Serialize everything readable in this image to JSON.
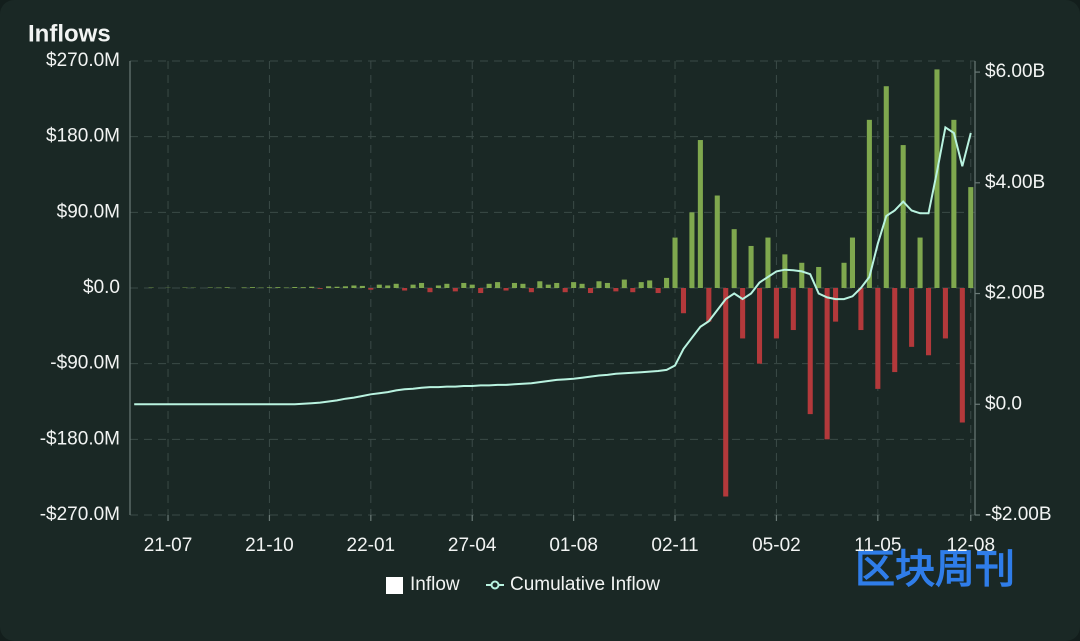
{
  "chart_data": {
    "type": "bar",
    "title": "Inflows",
    "watermark": "区块周刊",
    "categories": [
      null,
      null,
      null,
      null,
      "21-07",
      null,
      null,
      null,
      null,
      null,
      null,
      null,
      null,
      null,
      null,
      null,
      "21-10",
      null,
      null,
      null,
      null,
      null,
      null,
      null,
      null,
      null,
      null,
      null,
      "22-01",
      null,
      null,
      null,
      null,
      null,
      null,
      null,
      null,
      null,
      null,
      null,
      "27-04",
      null,
      null,
      null,
      null,
      null,
      null,
      null,
      null,
      null,
      null,
      null,
      "01-08",
      null,
      null,
      null,
      null,
      null,
      null,
      null,
      null,
      null,
      null,
      null,
      "02-11",
      null,
      null,
      null,
      null,
      null,
      null,
      null,
      null,
      null,
      null,
      null,
      "05-02",
      null,
      null,
      null,
      null,
      null,
      null,
      null,
      null,
      null,
      null,
      null,
      "11-05",
      null,
      null,
      null,
      null,
      null,
      null,
      null,
      null,
      null,
      null,
      "12-08"
    ],
    "series": [
      {
        "name": "Inflow",
        "color": "#ffffff",
        "positive_color": "#7fa84e",
        "negative_color": "#b3393b",
        "values": [
          0,
          0,
          0.5,
          0,
          0.3,
          0,
          0.5,
          0.4,
          0,
          0.6,
          0.5,
          0.8,
          0,
          0.7,
          1,
          0.5,
          0.8,
          1,
          0.6,
          1.2,
          1,
          1.5,
          -1,
          2,
          1.5,
          2,
          3,
          2.5,
          -2,
          4,
          3,
          5,
          -3,
          4,
          6,
          -5,
          3,
          5,
          -4,
          6,
          4,
          -6,
          5,
          7,
          -3,
          6,
          5,
          -5,
          8,
          4,
          6,
          -5,
          7,
          5,
          -6,
          8,
          6,
          -4,
          10,
          -5,
          7,
          9,
          -6,
          12,
          60,
          -30,
          90,
          176,
          -40,
          110,
          -248,
          70,
          -60,
          50,
          -90,
          60,
          -60,
          40,
          -50,
          30,
          -150,
          25,
          -180,
          -40,
          30,
          60,
          -50,
          200,
          -120,
          240,
          -100,
          170,
          -70,
          60,
          -80,
          260,
          -60,
          200,
          -160,
          120
        ]
      },
      {
        "name": "Cumulative Inflow",
        "color": "#b9f3e0",
        "axis": "y2",
        "values": [
          0,
          0,
          0,
          0,
          0,
          0,
          0,
          0,
          0,
          0,
          0,
          0,
          0,
          0,
          0,
          0,
          0,
          0,
          0,
          0,
          0.01,
          0.02,
          0.03,
          0.05,
          0.07,
          0.1,
          0.12,
          0.15,
          0.18,
          0.2,
          0.22,
          0.25,
          0.27,
          0.28,
          0.3,
          0.31,
          0.31,
          0.32,
          0.32,
          0.33,
          0.33,
          0.34,
          0.34,
          0.35,
          0.35,
          0.36,
          0.37,
          0.38,
          0.4,
          0.42,
          0.44,
          0.45,
          0.46,
          0.48,
          0.5,
          0.52,
          0.53,
          0.55,
          0.56,
          0.57,
          0.58,
          0.59,
          0.6,
          0.62,
          0.7,
          1.0,
          1.2,
          1.4,
          1.5,
          1.7,
          1.9,
          2.0,
          1.9,
          2.0,
          2.2,
          2.3,
          2.4,
          2.43,
          2.42,
          2.4,
          2.35,
          2.0,
          1.93,
          1.9,
          1.9,
          1.95,
          2.1,
          2.3,
          2.9,
          3.4,
          3.5,
          3.66,
          3.5,
          3.45,
          3.45,
          4.2,
          5.0,
          4.9,
          4.3,
          4.9
        ]
      }
    ],
    "ylim": [
      -270,
      270
    ],
    "yticks": [
      {
        "value": 270,
        "label": "$270.0M"
      },
      {
        "value": 180,
        "label": "$180.0M"
      },
      {
        "value": 90,
        "label": "$90.0M"
      },
      {
        "value": 0,
        "label": "$0.0"
      },
      {
        "value": -90,
        "label": "-$90.0M"
      },
      {
        "value": -180,
        "label": "-$180.0M"
      },
      {
        "value": -270,
        "label": "-$270.0M"
      }
    ],
    "y2lim": [
      -2,
      6.2
    ],
    "y2ticks": [
      {
        "value": 6,
        "label": "$6.00B"
      },
      {
        "value": 4,
        "label": "$4.00B"
      },
      {
        "value": 2,
        "label": "$2.00B"
      },
      {
        "value": 0,
        "label": "$0.0"
      },
      {
        "value": -2,
        "label": "-$2.00B"
      }
    ],
    "grid": true
  }
}
